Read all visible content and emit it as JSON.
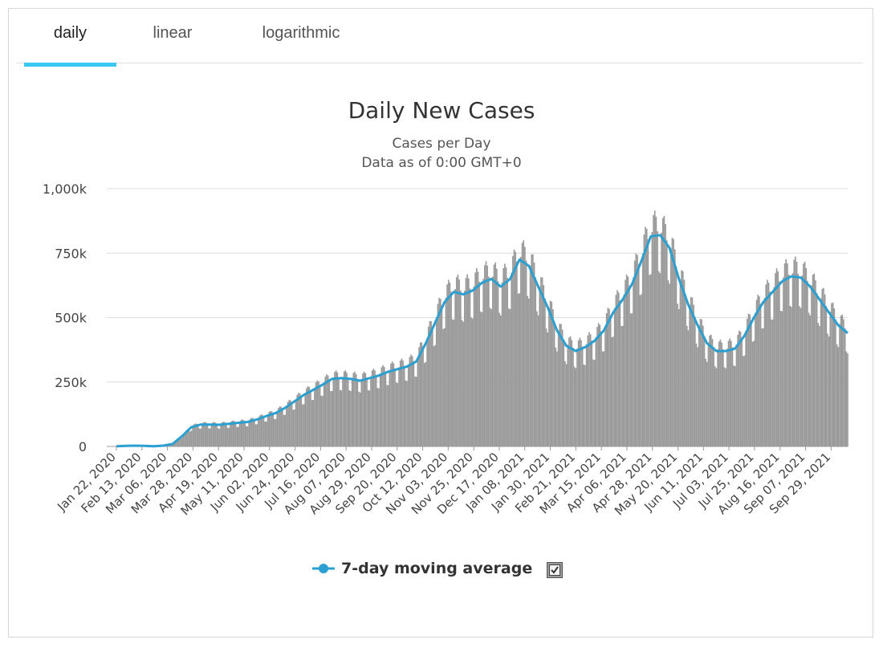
{
  "tabs": [
    {
      "label": "daily",
      "active": true
    },
    {
      "label": "linear",
      "active": false
    },
    {
      "label": "logarithmic",
      "active": false
    }
  ],
  "accent_color": "#3bc7f3",
  "chart_data": {
    "type": "bar",
    "title": "Daily New Cases",
    "subtitle": [
      "Cases per Day",
      "Data as of 0:00 GMT+0"
    ],
    "xlabel": "",
    "ylabel": "",
    "ylim": [
      0,
      1000000
    ],
    "y_ticks": [
      {
        "value": 0,
        "label": "0"
      },
      {
        "value": 250000,
        "label": "250k"
      },
      {
        "value": 500000,
        "label": "500k"
      },
      {
        "value": 750000,
        "label": "750k"
      },
      {
        "value": 1000000,
        "label": "1,000k"
      }
    ],
    "x_tick_labels": [
      "Jan 22, 2020",
      "Feb 13, 2020",
      "Mar 06, 2020",
      "Mar 28, 2020",
      "Apr 19, 2020",
      "May 11, 2020",
      "Jun 02, 2020",
      "Jun 24, 2020",
      "Jul 16, 2020",
      "Aug 07, 2020",
      "Aug 29, 2020",
      "Sep 20, 2020",
      "Oct 12, 2020",
      "Nov 03, 2020",
      "Nov 25, 2020",
      "Dec 17, 2020",
      "Jan 08, 2021",
      "Jan 30, 2021",
      "Feb 21, 2021",
      "Mar 15, 2021",
      "Apr 06, 2021",
      "Apr 28, 2021",
      "May 20, 2021",
      "Jun 11, 2021",
      "Jul 03, 2021",
      "Jul 25, 2021",
      "Aug 16, 2021",
      "Sep 07, 2021",
      "Sep 29, 2021"
    ],
    "grid": true,
    "bar_color": "#9a9a9a",
    "series": [
      {
        "name": "7-day moving average",
        "type": "line",
        "color": "#2a9fd0",
        "x_start": "Jan 22, 2020",
        "step_days": 7,
        "values": [
          1000,
          2500,
          3000,
          2500,
          1000,
          3000,
          10000,
          40000,
          75000,
          85000,
          85000,
          84000,
          88000,
          92000,
          95000,
          105000,
          118000,
          130000,
          150000,
          175000,
          200000,
          220000,
          240000,
          262000,
          265000,
          262000,
          255000,
          265000,
          275000,
          290000,
          300000,
          310000,
          330000,
          400000,
          480000,
          560000,
          600000,
          590000,
          605000,
          635000,
          650000,
          620000,
          650000,
          725000,
          700000,
          620000,
          540000,
          450000,
          390000,
          370000,
          385000,
          410000,
          450000,
          520000,
          570000,
          630000,
          720000,
          815000,
          820000,
          770000,
          650000,
          550000,
          470000,
          400000,
          370000,
          370000,
          380000,
          430000,
          500000,
          560000,
          600000,
          640000,
          660000,
          655000,
          620000,
          570000,
          520000,
          470000,
          440000
        ]
      }
    ],
    "legend": {
      "placement": "bottom-center",
      "label": "7-day moving average"
    }
  }
}
